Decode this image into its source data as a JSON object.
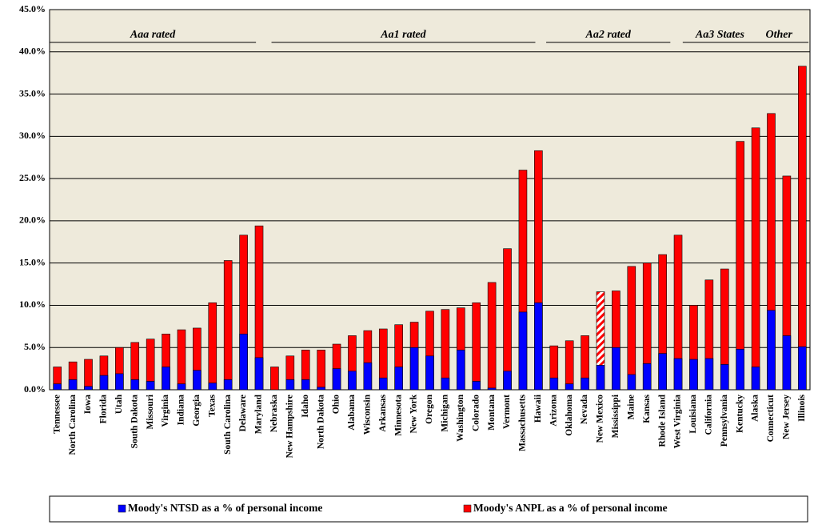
{
  "chart_data": {
    "type": "bar",
    "categories": [
      "Tennessee",
      "North Carolina",
      "Iowa",
      "Florida",
      "Utah",
      "South Dakota",
      "Missouri",
      "Virginia",
      "Indiana",
      "Georgia",
      "Texas",
      "South Carolina",
      "Delaware",
      "Maryland",
      "Nebraska",
      "New Hampshire",
      "Idaho",
      "North Dakota",
      "Ohio",
      "Alabama",
      "Wisconsin",
      "Arkansas",
      "Minnesota",
      "New York",
      "Oregon",
      "Michigan",
      "Washington",
      "Colorado",
      "Montana",
      "Vermont",
      "Massachusetts",
      "Hawaii",
      "Arizona",
      "Oklahoma",
      "Nevada",
      "New Mexico",
      "Mississippi",
      "Maine",
      "Kansas",
      "Rhode Island",
      "West Virginia",
      "Louisiana",
      "California",
      "Pennsylvania",
      "Kentucky",
      "Alaska",
      "Connecticut",
      "New Jersey",
      "Illinois"
    ],
    "series": [
      {
        "name": "Moody's ANPL as a % of personal income",
        "color": "#ff0000",
        "values": [
          2.7,
          3.3,
          3.6,
          4.0,
          5.0,
          5.6,
          6.0,
          6.6,
          7.1,
          7.3,
          10.3,
          15.3,
          18.3,
          19.4,
          2.7,
          4.0,
          4.7,
          4.7,
          5.4,
          6.4,
          7.0,
          7.2,
          7.7,
          8.0,
          9.3,
          9.5,
          9.7,
          10.3,
          12.7,
          16.7,
          26.0,
          28.3,
          5.2,
          5.8,
          6.4,
          11.6,
          11.7,
          14.6,
          15.0,
          16.0,
          18.3,
          10.0,
          13.0,
          14.3,
          29.4,
          31.0,
          32.7,
          25.3,
          38.3
        ]
      },
      {
        "name": "Moody's NTSD as a % of personal income",
        "color": "#0000ff",
        "values": [
          0.7,
          1.2,
          0.4,
          1.7,
          1.9,
          1.2,
          1.0,
          2.7,
          0.7,
          2.3,
          0.8,
          1.2,
          6.6,
          3.8,
          0,
          1.2,
          1.2,
          0.3,
          2.5,
          2.2,
          3.2,
          1.4,
          2.7,
          5.0,
          4.0,
          1.4,
          4.7,
          1.0,
          0.2,
          2.2,
          9.2,
          10.3,
          1.4,
          0.7,
          1.4,
          2.9,
          5.0,
          1.8,
          3.1,
          4.3,
          3.7,
          3.6,
          3.7,
          3.0,
          4.8,
          2.7,
          9.4,
          6.4,
          5.1
        ]
      }
    ],
    "hatched_categories": [
      "New Mexico"
    ],
    "annotations": [
      "Aaa rated",
      "Aa1 rated",
      "Aa2 rated",
      "Aa3  States",
      "Other"
    ],
    "ylim": [
      0,
      45
    ],
    "yticks": [
      {
        "value": 0,
        "label": "0.0%"
      },
      {
        "value": 5,
        "label": "5.0%"
      },
      {
        "value": 10,
        "label": "10.0%"
      },
      {
        "value": 15,
        "label": "15.0%"
      },
      {
        "value": 20,
        "label": "20.0%"
      },
      {
        "value": 25,
        "label": "25.0%"
      },
      {
        "value": 30,
        "label": "30.0%"
      },
      {
        "value": 35,
        "label": "35.0%"
      },
      {
        "value": 40,
        "label": "40.0%"
      },
      {
        "value": 45,
        "label": "45.0%"
      }
    ],
    "grid": true,
    "legend": "bottom"
  }
}
